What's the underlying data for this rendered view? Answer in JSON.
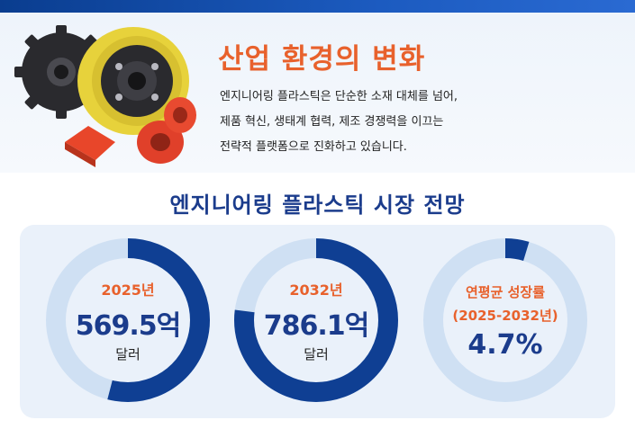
{
  "hero": {
    "title": "산업 환경의 변화",
    "description": [
      "엔지니어링 플라스틱은 단순한 소재 대체를 넘어,",
      "제품 혁신, 생태계 협력, 제조 경쟁력을 이끄는",
      "전략적 플랫폼으로 진화하고 있습니다."
    ]
  },
  "market": {
    "title": "엔지니어링 플라스틱 시장 전망",
    "gauges": [
      {
        "label": "2025년",
        "value": "569.5억",
        "unit": "달러",
        "fill": 0.54
      },
      {
        "label": "2032년",
        "value": "786.1억",
        "unit": "달러",
        "fill": 0.77
      },
      {
        "label": "연평균 성장률",
        "sublabel": "(2025-2032년)",
        "value": "4.7%",
        "fill": 0.047
      }
    ]
  },
  "colors": {
    "accent_orange": "#e8612c",
    "navy": "#1b3c8c",
    "ring_track": "#cfe0f3",
    "ring_fill": "#0f3f93",
    "panel_bg": "#eaf1fa"
  },
  "icons": [
    "black-sprocket-gear-icon",
    "yellow-wheel-icon",
    "orange-cylinder-parts-icon"
  ]
}
